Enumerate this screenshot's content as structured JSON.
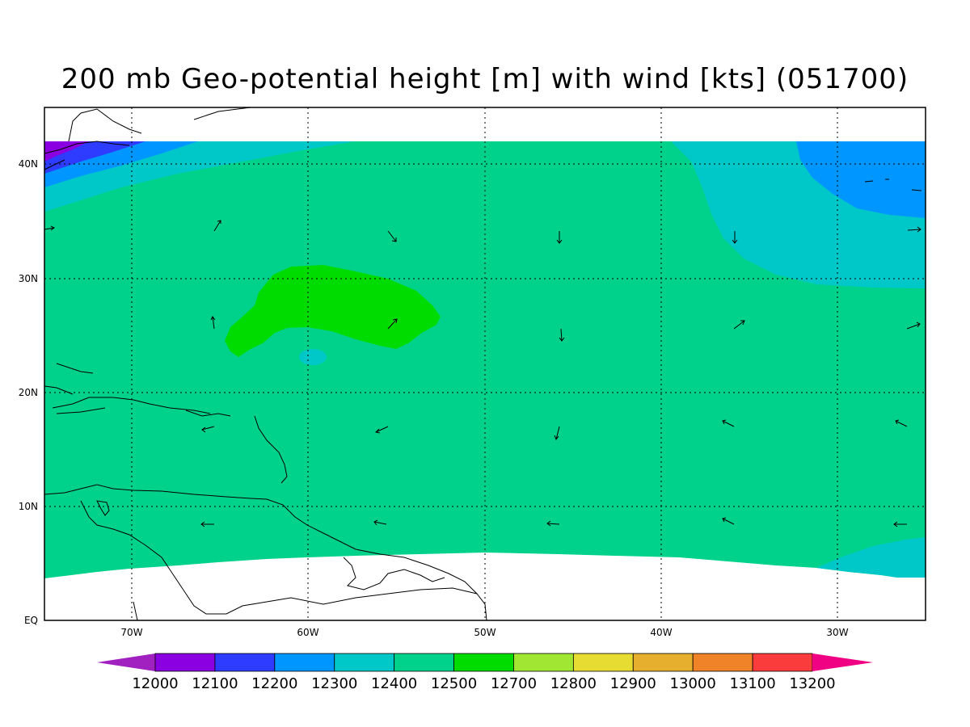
{
  "title": "200 mb Geo-potential height [m] with wind [kts] (051700)",
  "lon_labels": [
    "70W",
    "60W",
    "50W",
    "40W",
    "30W"
  ],
  "lat_labels": [
    "40N",
    "30N",
    "20N",
    "10N",
    "EQ"
  ],
  "colorbar": {
    "labels": [
      "12000",
      "12100",
      "12200",
      "12300",
      "12400",
      "12500",
      "12700",
      "12800",
      "12900",
      "13000",
      "13100",
      "13200"
    ],
    "colors": [
      "#a020c0",
      "#8a00e0",
      "#2d3cff",
      "#0096ff",
      "#00c8c8",
      "#00d28c",
      "#00dc00",
      "#a0e632",
      "#e6dc32",
      "#e6af2d",
      "#f08228",
      "#fa3c3c",
      "#f00082"
    ]
  },
  "field_colors": {
    "land_fill": "#00d28c",
    "high_center": "#00dc00",
    "ridge_contour": "#00c8c8",
    "trough_low": "#0096ff",
    "trough_lowest": "#2d3cff",
    "trough_min": "#8a00e0",
    "coastline": "#000000",
    "grid": "#000000"
  }
}
